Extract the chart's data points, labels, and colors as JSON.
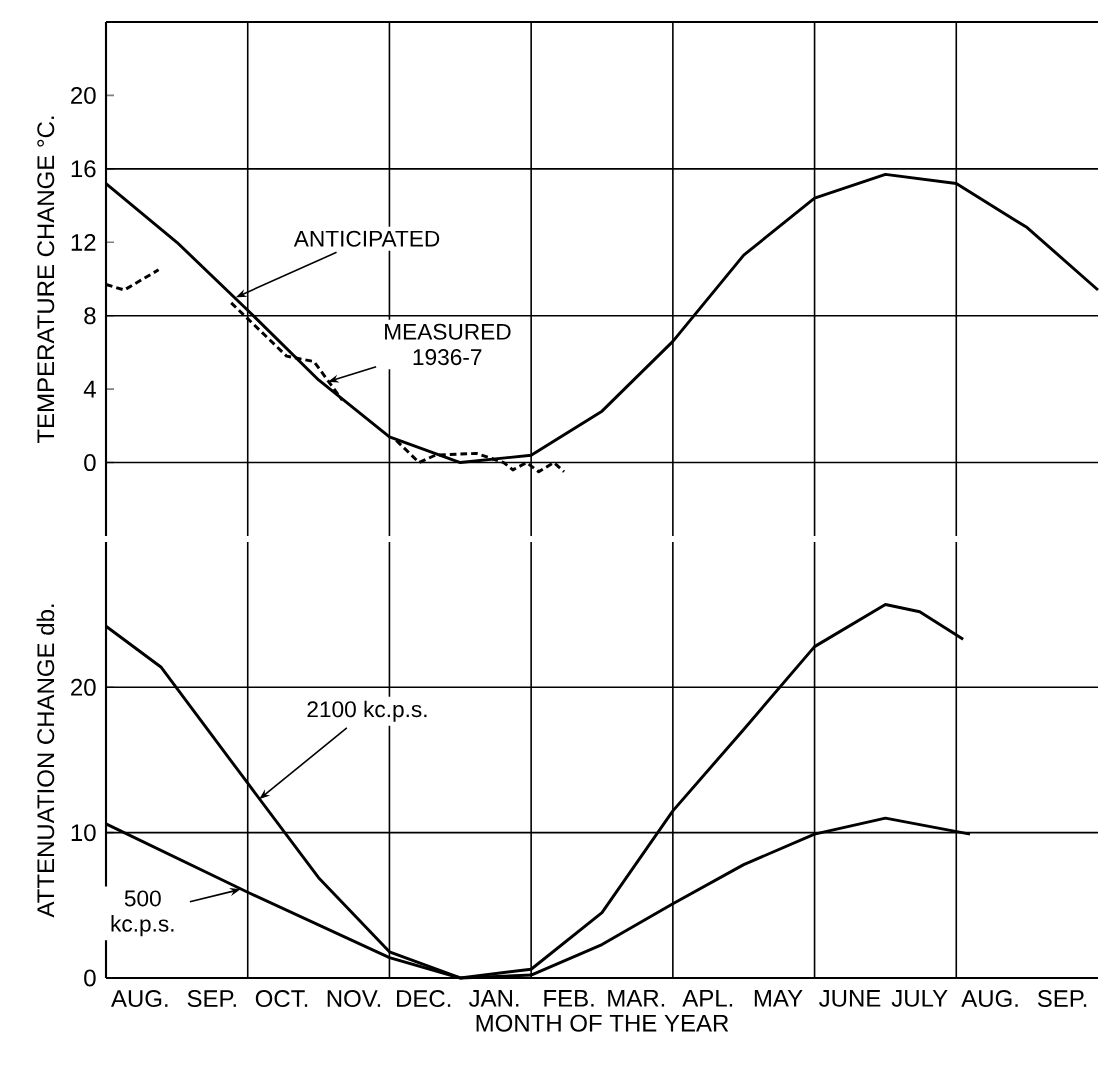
{
  "chart_data": [
    {
      "type": "line",
      "ylabel": "TEMPERATURE CHANGE °C.",
      "xlim": [
        "1936-08-01",
        "1937-10-01"
      ],
      "ylim": [
        -4,
        24
      ],
      "tick_labels": "y",
      "xticks": [
        {
          "value": "1936-08-16",
          "label": null
        },
        {
          "value": "1936-09-16",
          "label": null
        },
        {
          "value": "1936-10-16",
          "label": null
        },
        {
          "value": "1936-11-16",
          "label": null
        },
        {
          "value": "1936-12-16",
          "label": null
        },
        {
          "value": "1937-01-16",
          "label": null
        },
        {
          "value": "1937-02-16",
          "label": null
        },
        {
          "value": "1937-03-16",
          "label": null
        },
        {
          "value": "1937-04-16",
          "label": null
        },
        {
          "value": "1937-05-16",
          "label": null
        },
        {
          "value": "1937-06-16",
          "label": null
        },
        {
          "value": "1937-07-16",
          "label": null
        },
        {
          "value": "1937-08-16",
          "label": null
        },
        {
          "value": "1937-09-16",
          "label": null
        }
      ],
      "yticks": [
        0,
        4,
        8,
        12,
        16,
        20
      ],
      "series": [
        {
          "color": "#000000",
          "line_style": "solid",
          "x": [
            "1936-08-01",
            "1936-09-01",
            "1936-10-01",
            "1936-11-01",
            "1936-12-01",
            "1937-01-01",
            "1937-02-01",
            "1937-03-01",
            "1937-04-01",
            "1937-05-01",
            "1937-06-01",
            "1937-07-01",
            "1937-08-01",
            "1937-09-01",
            "1937-10-01"
          ],
          "values": [
            15.2,
            12.0,
            8.3,
            4.5,
            1.4,
            0.0,
            0.4,
            2.8,
            6.6,
            11.3,
            14.4,
            15.7,
            15.2,
            12.8,
            9.4
          ]
        },
        {
          "color": "#000000",
          "line_style": "dashed",
          "x": [
            "1936-08-01",
            "1936-08-09",
            "1936-08-24",
            "1936-09-07",
            "1936-09-24",
            "1936-10-18",
            "1936-10-30",
            "1936-11-11",
            "1936-11-22",
            "1936-12-04",
            "1936-12-14",
            "1936-12-21",
            "1937-01-08",
            "1937-01-20",
            "1937-01-24",
            "1937-01-30",
            "1937-02-04",
            "1937-02-10",
            "1937-02-14"
          ],
          "values": [
            9.7,
            9.4,
            10.5,
            null,
            8.7,
            5.8,
            5.5,
            3.4,
            null,
            1.2,
            0,
            0.4,
            0.5,
            0,
            -0.4,
            0,
            -0.5,
            0,
            -0.5
          ]
        }
      ],
      "ref_lines": [
        {
          "axis": "y",
          "value": 0
        },
        {
          "axis": "y",
          "value": 8
        },
        {
          "axis": "y",
          "value": 16
        },
        {
          "axis": "x",
          "value": "1936-10-01"
        },
        {
          "axis": "x",
          "value": "1936-12-01"
        },
        {
          "axis": "x",
          "value": "1937-02-01"
        },
        {
          "axis": "x",
          "value": "1937-04-01"
        },
        {
          "axis": "x",
          "value": "1937-06-01"
        },
        {
          "axis": "x",
          "value": "1937-08-01"
        }
      ],
      "annotations": [
        {
          "text": "ANTICIPATED",
          "x": "1936-09-26",
          "y": 9.0
        },
        {
          "text": "MEASURED 1936-7",
          "x": "1936-11-05",
          "y": 4.4
        }
      ]
    },
    {
      "type": "line",
      "ylabel": "ATTENUATION CHANGE db.",
      "xlabel": "MONTH OF THE YEAR",
      "xlim": [
        "1936-08-01",
        "1937-10-01"
      ],
      "ylim": [
        0,
        30
      ],
      "xticks": [
        {
          "value": "1936-08-16",
          "label": "AUG."
        },
        {
          "value": "1936-09-16",
          "label": "SEP."
        },
        {
          "value": "1936-10-16",
          "label": "OCT."
        },
        {
          "value": "1936-11-16",
          "label": "NOV."
        },
        {
          "value": "1936-12-16",
          "label": "DEC."
        },
        {
          "value": "1937-01-16",
          "label": "JAN."
        },
        {
          "value": "1937-02-16",
          "label": "FEB."
        },
        {
          "value": "1937-03-16",
          "label": "MAR."
        },
        {
          "value": "1937-04-16",
          "label": "APL."
        },
        {
          "value": "1937-05-16",
          "label": "MAY"
        },
        {
          "value": "1937-06-16",
          "label": "JUNE"
        },
        {
          "value": "1937-07-16",
          "label": "JULY"
        },
        {
          "value": "1937-08-16",
          "label": "AUG."
        },
        {
          "value": "1937-09-16",
          "label": "SEP."
        }
      ],
      "yticks": [
        0,
        10,
        20
      ],
      "series": [
        {
          "color": "#000000",
          "line_style": "solid",
          "x": [
            "1936-08-01",
            "1936-08-25",
            "1936-10-01",
            "1936-11-01",
            "1936-12-01",
            "1937-01-01",
            "1937-02-01",
            "1937-03-01",
            "1937-04-01",
            "1937-05-01",
            "1937-06-01",
            "1937-07-01",
            "1937-07-16",
            "1937-08-04"
          ],
          "values": [
            24.2,
            21.4,
            13.4,
            6.9,
            1.8,
            0,
            0.6,
            4.5,
            11.5,
            17.1,
            22.8,
            25.7,
            25.2,
            23.3
          ]
        },
        {
          "color": "#000000",
          "line_style": "solid",
          "x": [
            "1936-08-01",
            "1936-10-01",
            "1936-12-01",
            "1937-01-01",
            "1937-02-01",
            "1937-03-01",
            "1937-04-01",
            "1937-05-01",
            "1937-06-01",
            "1937-07-01",
            "1937-08-07"
          ],
          "values": [
            10.6,
            5.9,
            1.4,
            0,
            0.2,
            2.3,
            5.1,
            7.8,
            9.9,
            11.0,
            9.9
          ]
        }
      ],
      "ref_lines": [
        {
          "axis": "y",
          "value": 10
        },
        {
          "axis": "y",
          "value": 20
        },
        {
          "axis": "x",
          "value": "1936-10-01"
        },
        {
          "axis": "x",
          "value": "1936-12-01"
        },
        {
          "axis": "x",
          "value": "1937-02-01"
        },
        {
          "axis": "x",
          "value": "1937-04-01"
        },
        {
          "axis": "x",
          "value": "1937-06-01"
        },
        {
          "axis": "x",
          "value": "1937-08-01"
        }
      ],
      "annotations": [
        {
          "text": "2100 kc.p.s.",
          "x": "1936-10-06",
          "y": 12.3
        },
        {
          "text": "500 kc.p.s.",
          "x": "1936-09-28",
          "y": 6.1
        }
      ]
    }
  ]
}
